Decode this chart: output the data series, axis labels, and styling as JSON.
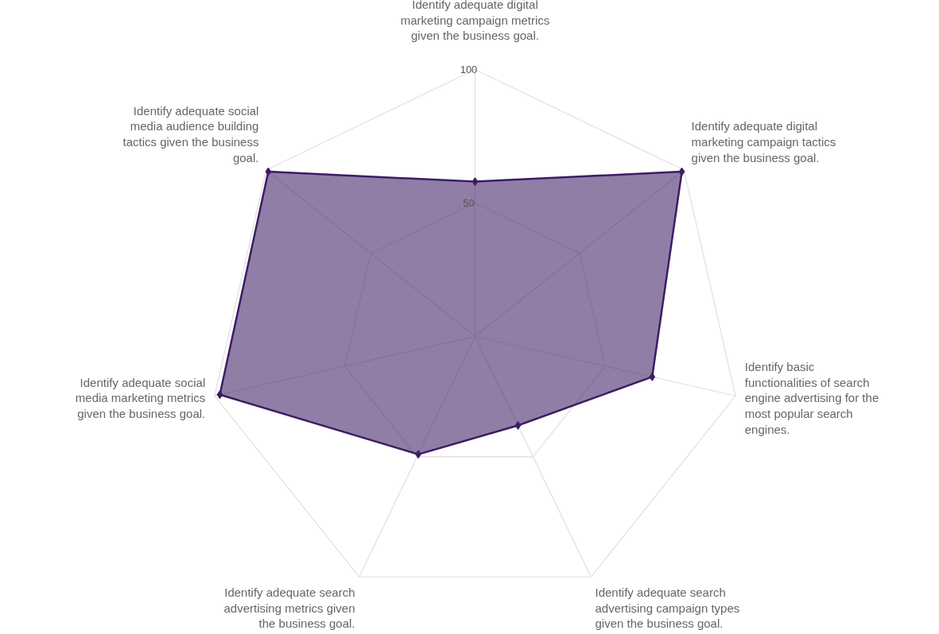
{
  "chart_data": {
    "type": "radar",
    "categories": [
      "Identify adequate digital marketing campaign metrics given the business goal.",
      "Identify adequate digital marketing campaign tactics given the business goal.",
      "Identify basic functionalities of search engine advertising for the most popular search engines.",
      "Identify adequate search advertising campaign types given the business goal.",
      "Identify adequate search advertising metrics given the business goal.",
      "Identify adequate social media marketing metrics given the business goal.",
      "Identify adequate social media audience building tactics given the business goal."
    ],
    "series": [
      {
        "color": "#3d1c63",
        "values": [
          58,
          99,
          68,
          37,
          49,
          98,
          99
        ]
      }
    ],
    "ylim": [
      0,
      100
    ],
    "yticks": [
      50,
      100
    ],
    "marker": "diamond",
    "grid": true
  }
}
